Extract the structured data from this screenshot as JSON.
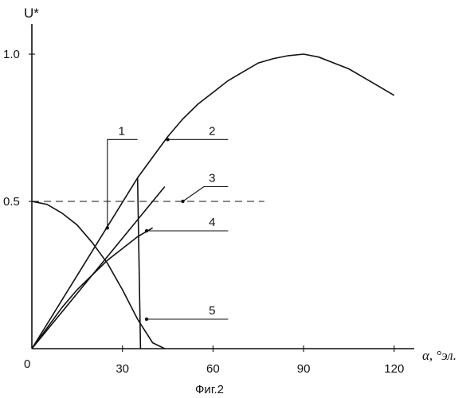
{
  "chart_data": {
    "type": "line",
    "y_axis_label": "U*",
    "x_axis_label": "α, °эл.",
    "caption": "Фиг.2",
    "origin_label": "0",
    "x_ticks": [
      "30",
      "60",
      "90",
      "120"
    ],
    "y_ticks": [
      "0.5",
      "1.0"
    ],
    "xlim": [
      0,
      125
    ],
    "ylim": [
      0,
      1.05
    ],
    "reference_line": {
      "y": 0.5,
      "style": "dashed",
      "x_range": [
        0,
        77
      ]
    },
    "series": [
      {
        "callout": "2",
        "x": [
          35,
          40,
          45,
          50,
          55,
          60,
          65,
          70,
          75,
          80,
          85,
          90,
          95,
          100,
          105,
          110,
          115,
          120
        ],
        "y": [
          0.58,
          0.65,
          0.72,
          0.78,
          0.83,
          0.87,
          0.91,
          0.94,
          0.97,
          0.985,
          0.995,
          1.0,
          0.99,
          0.97,
          0.95,
          0.92,
          0.89,
          0.86
        ]
      },
      {
        "callout": "1",
        "x": [
          0,
          35
        ],
        "y": [
          0,
          0.58
        ]
      },
      {
        "callout": "4",
        "x": [
          0,
          44
        ],
        "y": [
          0,
          0.55
        ]
      },
      {
        "callout": "3",
        "x": [
          0,
          5,
          10,
          15,
          20,
          25,
          30,
          35,
          40
        ],
        "y": [
          0,
          0.07,
          0.14,
          0.2,
          0.25,
          0.3,
          0.34,
          0.38,
          0.41
        ]
      },
      {
        "callout": "5",
        "x": [
          0,
          5,
          10,
          15,
          20,
          25,
          30,
          35,
          40,
          44
        ],
        "y": [
          0.5,
          0.49,
          0.46,
          0.42,
          0.36,
          0.29,
          0.2,
          0.1,
          0.02,
          0
        ]
      },
      {
        "callout": "",
        "x": [
          35,
          36
        ],
        "y": [
          0.58,
          0
        ]
      }
    ],
    "callouts": [
      {
        "label": "1",
        "target": [
          25,
          0.41
        ],
        "elbow": [
          25,
          0.71
        ],
        "end": [
          35,
          0.71
        ]
      },
      {
        "label": "2",
        "target": [
          45,
          0.71
        ],
        "elbow": null,
        "end": [
          65,
          0.71
        ]
      },
      {
        "label": "3",
        "target": [
          50,
          0.5
        ],
        "elbow": [
          57,
          0.55
        ],
        "end": [
          65,
          0.55
        ]
      },
      {
        "label": "4",
        "target": [
          38,
          0.4
        ],
        "elbow": null,
        "end": [
          65,
          0.4
        ]
      },
      {
        "label": "5",
        "target": [
          38,
          0.1
        ],
        "elbow": null,
        "end": [
          65,
          0.1
        ]
      }
    ]
  }
}
